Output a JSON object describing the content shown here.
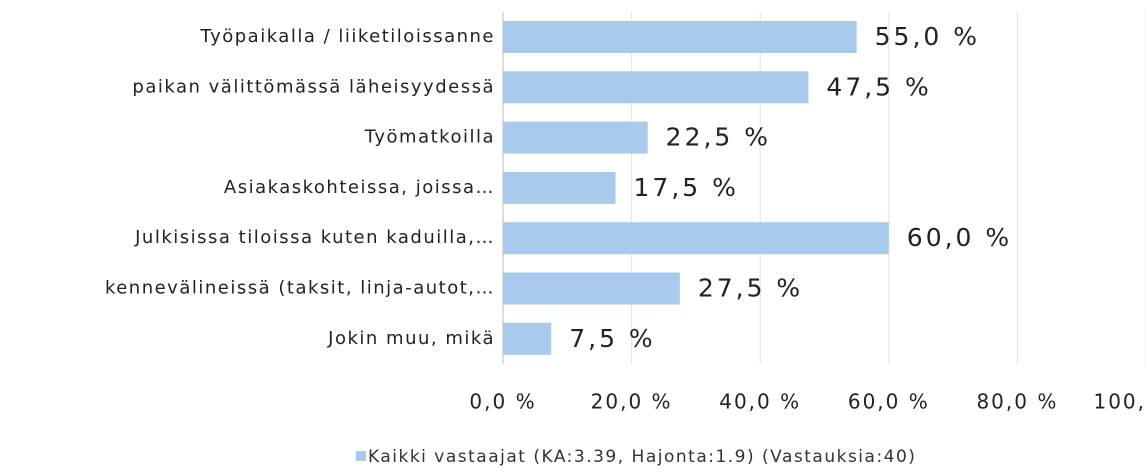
{
  "chart_data": {
    "type": "hbar",
    "categories": [
      "Työpaikalla / liiketiloissanne",
      "paikan välittömässä läheisyydessä",
      "Työmatkoilla",
      "Asiakaskohteissa, joissa…",
      "Julkisissa tiloissa kuten kaduilla,…",
      "kennevälineissä (taksit, linja-autot,…",
      "Jokin muu, mikä"
    ],
    "series": [
      {
        "name": "Kaikki vastaajat (KA:3.39, Hajonta:1.9) (Vastauksia:40)",
        "color": "#a9cbeb",
        "values": [
          55,
          47.5,
          22.5,
          17.5,
          60,
          27.5,
          7.5
        ],
        "value_labels": [
          "55,0 %",
          "47,5 %",
          "22,5 %",
          "17,5 %",
          "60,0 %",
          "27,5 %",
          "7,5 %"
        ]
      }
    ],
    "xlim": [
      0,
      100
    ],
    "xticks": [
      {
        "value": 0,
        "label": "0,0 %"
      },
      {
        "value": 20,
        "label": "20,0 %"
      },
      {
        "value": 40,
        "label": "40,0 %"
      },
      {
        "value": 60,
        "label": "60,0 %"
      },
      {
        "value": 80,
        "label": "80,0 %"
      },
      {
        "value": 100,
        "label": "100,"
      }
    ],
    "grid": true
  }
}
